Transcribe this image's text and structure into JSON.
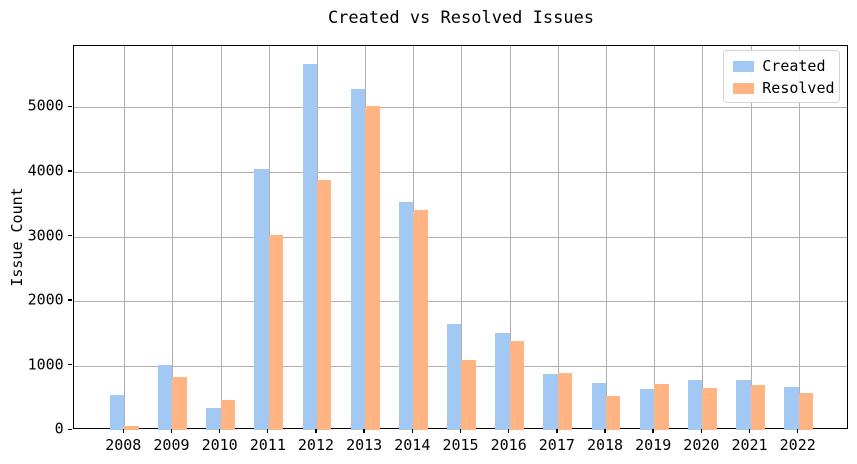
{
  "title": "Created vs Resolved Issues",
  "chart_data": {
    "type": "bar",
    "title": "Created vs Resolved Issues",
    "xlabel": "",
    "ylabel": "Issue Count",
    "categories": [
      "2008",
      "2009",
      "2010",
      "2011",
      "2012",
      "2013",
      "2014",
      "2015",
      "2016",
      "2017",
      "2018",
      "2019",
      "2020",
      "2021",
      "2022"
    ],
    "series": [
      {
        "name": "Created",
        "color": "#a1c9f4",
        "values": [
          540,
          1010,
          345,
          4040,
          5670,
          5290,
          3530,
          1640,
          1500,
          870,
          740,
          640,
          780,
          775,
          670
        ]
      },
      {
        "name": "Resolved",
        "color": "#ffb482",
        "values": [
          60,
          820,
          465,
          3030,
          3880,
          5020,
          3410,
          1090,
          1385,
          880,
          535,
          710,
          655,
          705,
          580
        ]
      }
    ],
    "ylim": [
      0,
      5950
    ],
    "yticks": [
      0,
      1000,
      2000,
      3000,
      4000,
      5000
    ],
    "xlim_units": [
      -1.05,
      15.05
    ],
    "bar_width_units": 0.3,
    "grid": true,
    "legend_position": "upper right",
    "colors": {
      "created": "#a1c9f4",
      "resolved": "#ffb482",
      "grid": "#b0b0b0",
      "spine": "#000000",
      "background": "#ffffff"
    }
  },
  "legend": {
    "items": [
      {
        "label": "Created",
        "color": "#a1c9f4"
      },
      {
        "label": "Resolved",
        "color": "#ffb482"
      }
    ]
  }
}
